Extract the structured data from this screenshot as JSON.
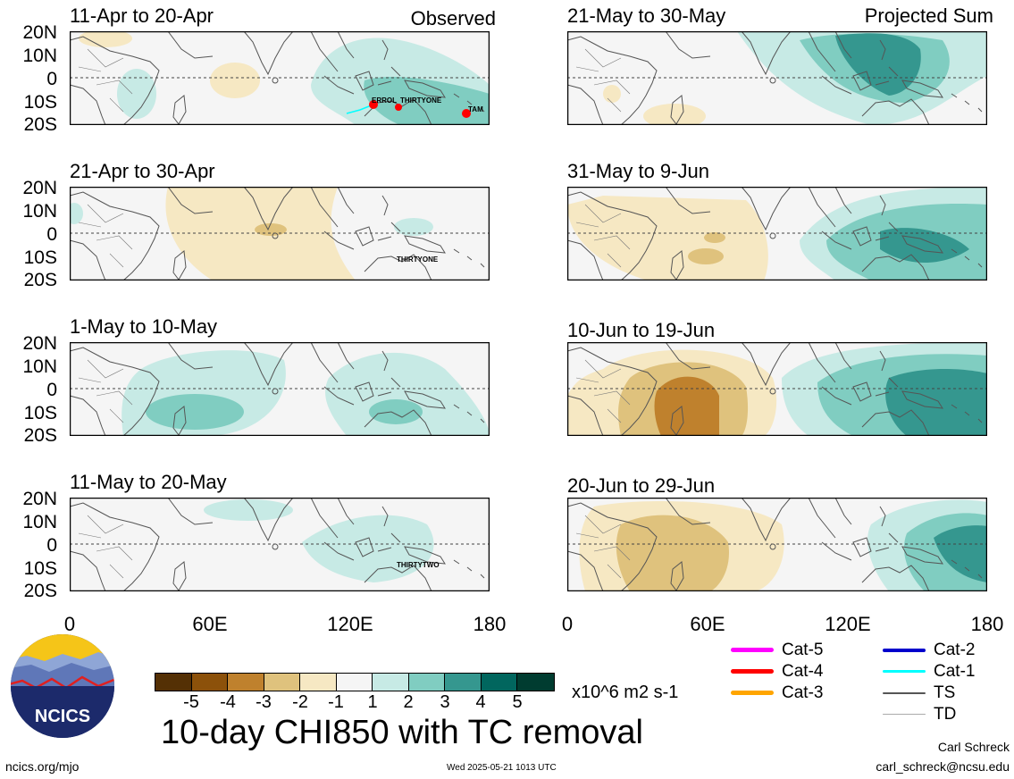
{
  "panels": [
    {
      "title": "11-Apr to 20-Apr",
      "label": "Observed",
      "storms": [
        "ERROL",
        "THIRTYONE",
        "TAM"
      ]
    },
    {
      "title": "21-Apr to 30-Apr",
      "label": "",
      "storms": [
        "THIRTYONE"
      ]
    },
    {
      "title": "1-May to 10-May",
      "label": "",
      "storms": []
    },
    {
      "title": "11-May to 20-May",
      "label": "",
      "storms": [
        "THIRTYTWO"
      ]
    },
    {
      "title": "21-May to 30-May",
      "label": "Projected Sum",
      "storms": []
    },
    {
      "title": "31-May to 9-Jun",
      "label": "",
      "storms": []
    },
    {
      "title": "10-Jun to 19-Jun",
      "label": "",
      "storms": []
    },
    {
      "title": "20-Jun to 29-Jun",
      "label": "",
      "storms": []
    }
  ],
  "lat_labels": [
    "20N",
    "10N",
    "0",
    "10S",
    "20S"
  ],
  "lon_labels_left": [
    "0",
    "60E",
    "120E",
    "180"
  ],
  "lon_labels_right": [
    "0",
    "60E",
    "120E",
    "180"
  ],
  "colorbar": {
    "colors": [
      "#543005",
      "#8c510a",
      "#bf812d",
      "#dfc27d",
      "#f6e8c3",
      "#f5f5f5",
      "#c7eae5",
      "#80cdc1",
      "#35978f",
      "#01665e",
      "#003c30"
    ],
    "ticks": [
      "-5",
      "-4",
      "-3",
      "-2",
      "-1",
      "1",
      "2",
      "3",
      "4",
      "5"
    ],
    "units": "x10^6 m2 s-1"
  },
  "main_title": "10-day CHI850 with TC removal",
  "tc_legend": [
    {
      "label": "Cat-5",
      "color": "#ff00ff"
    },
    {
      "label": "Cat-4",
      "color": "#ff0000"
    },
    {
      "label": "Cat-3",
      "color": "#ffa500"
    },
    {
      "label": "Cat-2",
      "color": "#0000cc"
    },
    {
      "label": "Cat-1",
      "color": "#00ffff"
    },
    {
      "label": "TS",
      "color": "#555555"
    },
    {
      "label": "TD",
      "color": "#aaaaaa"
    }
  ],
  "logo_text": "NCICS",
  "footer": {
    "url": "ncics.org/mjo",
    "timestamp": "Wed 2025-05-21 1013 UTC",
    "author": "Carl Schreck",
    "email": "carl_schreck@ncsu.edu"
  }
}
